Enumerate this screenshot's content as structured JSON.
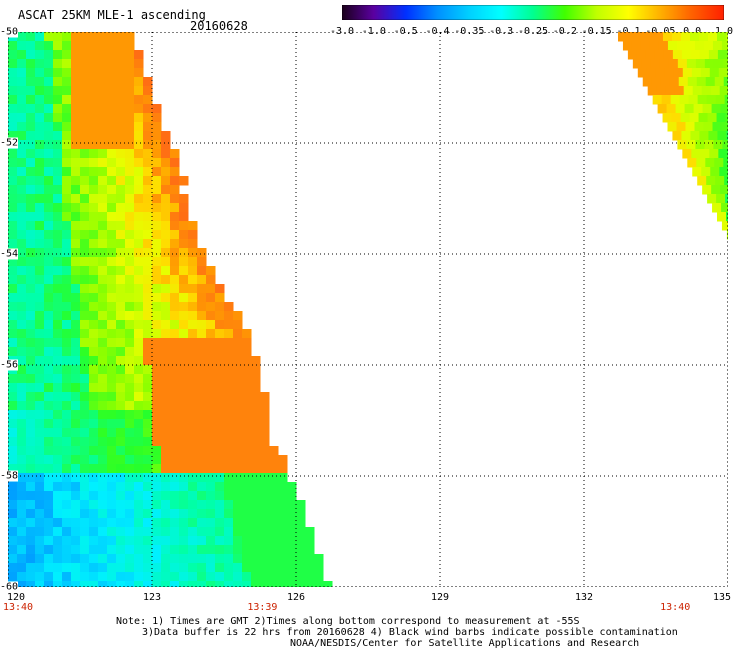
{
  "header": {
    "title": "ASCAT 25KM MLE-1 ascending",
    "date": "20160628"
  },
  "colorbar": {
    "labels": [
      "-3.0",
      "-1.0",
      "-0.5",
      "-0.4",
      "-0.35",
      "-0.3",
      "-0.25",
      "-0.2",
      "-0.15",
      "-0.1",
      "-0.05",
      "0.0",
      "1.0"
    ],
    "colors": [
      "#1a001a",
      "#5a00a0",
      "#0030ff",
      "#0090ff",
      "#00d0ff",
      "#00ffff",
      "#00ff90",
      "#40ff00",
      "#c0ff00",
      "#ffff00",
      "#ffb000",
      "#ff6000",
      "#ff2000"
    ]
  },
  "axes": {
    "lat_labels": [
      "-50",
      "-52",
      "-54",
      "-56",
      "-58",
      "-60"
    ],
    "lon_labels": [
      "120",
      "123",
      "126",
      "129",
      "132",
      "135"
    ],
    "lat_range": [
      -60,
      -50
    ],
    "lon_range": [
      120,
      135
    ]
  },
  "times": [
    {
      "text": "13:40",
      "lon": 120
    },
    {
      "text": "13:39",
      "lon": 125.3
    },
    {
      "text": "13:40",
      "lon": 133.9
    }
  ],
  "notes": {
    "line1": "Note: 1) Times are GMT 2)Times along bottom correspond to measurement at -55S",
    "line2": "3)Data buffer is 22 hrs from 20160628 4) Black wind barbs indicate possible contamination",
    "line3": "NOAA/NESDIS/Center for Satellite Applications and Research"
  }
}
